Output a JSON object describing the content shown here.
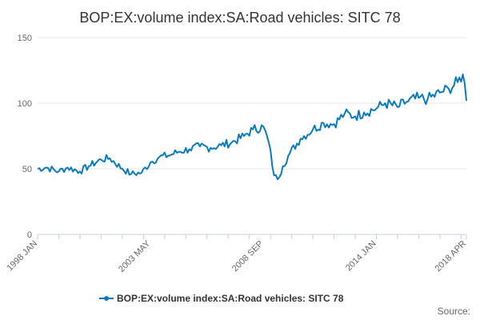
{
  "chart_data": {
    "type": "line",
    "title": "BOP:EX:volume index:SA:Road vehicles: SITC 78",
    "xlabel": "",
    "ylabel": "",
    "ylim": [
      0,
      150
    ],
    "yticks": [
      0,
      50,
      100,
      150
    ],
    "x_range": [
      "1998 JAN",
      "2018 APR"
    ],
    "x_tick_labels": [
      "1998 JAN",
      "2003 MAY",
      "2008 SEP",
      "2014 JAN",
      "2018 APR"
    ],
    "grid": true,
    "legend_position": "bottom",
    "color": "#0a7bbf",
    "series": [
      {
        "name": "BOP:EX:volume index:SA:Road vehicles: SITC 78",
        "anchors": [
          [
            "1998 JAN",
            50
          ],
          [
            "1998 JUN",
            51
          ],
          [
            "1999 JAN",
            48
          ],
          [
            "1999 JUN",
            51
          ],
          [
            "2000 JAN",
            48
          ],
          [
            "2000 JUN",
            52
          ],
          [
            "2001 JAN",
            57
          ],
          [
            "2001 JUN",
            58
          ],
          [
            "2002 JAN",
            50
          ],
          [
            "2002 JUN",
            46
          ],
          [
            "2002 DEC",
            47
          ],
          [
            "2003 MAY",
            55
          ],
          [
            "2003 OCT",
            59
          ],
          [
            "2004 MAR",
            60
          ],
          [
            "2004 SEP",
            63
          ],
          [
            "2005 MAR",
            65
          ],
          [
            "2005 SEP",
            67
          ],
          [
            "2006 MAR",
            66
          ],
          [
            "2006 SEP",
            68
          ],
          [
            "2007 MAR",
            70
          ],
          [
            "2007 OCT",
            75
          ],
          [
            "2008 MAR",
            80
          ],
          [
            "2008 SEP",
            82
          ],
          [
            "2008 DEC",
            70
          ],
          [
            "2009 MAR",
            45
          ],
          [
            "2009 MAY",
            42
          ],
          [
            "2009 AUG",
            52
          ],
          [
            "2009 DEC",
            62
          ],
          [
            "2010 JUN",
            73
          ],
          [
            "2011 JAN",
            80
          ],
          [
            "2011 JUL",
            85
          ],
          [
            "2012 JAN",
            84
          ],
          [
            "2012 JUL",
            92
          ],
          [
            "2013 JAN",
            90
          ],
          [
            "2013 JUN",
            93
          ],
          [
            "2014 JAN",
            96
          ],
          [
            "2014 JUN",
            100
          ],
          [
            "2015 JAN",
            97
          ],
          [
            "2015 JUN",
            101
          ],
          [
            "2016 JAN",
            104
          ],
          [
            "2016 JUN",
            103
          ],
          [
            "2017 JAN",
            108
          ],
          [
            "2017 JUN",
            111
          ],
          [
            "2017 NOV",
            116
          ],
          [
            "2018 FEB",
            122
          ],
          [
            "2018 APR",
            105
          ]
        ]
      }
    ]
  },
  "legend": {
    "label": "BOP:EX:volume index:SA:Road vehicles: SITC 78"
  },
  "source": {
    "label": "Source:"
  }
}
